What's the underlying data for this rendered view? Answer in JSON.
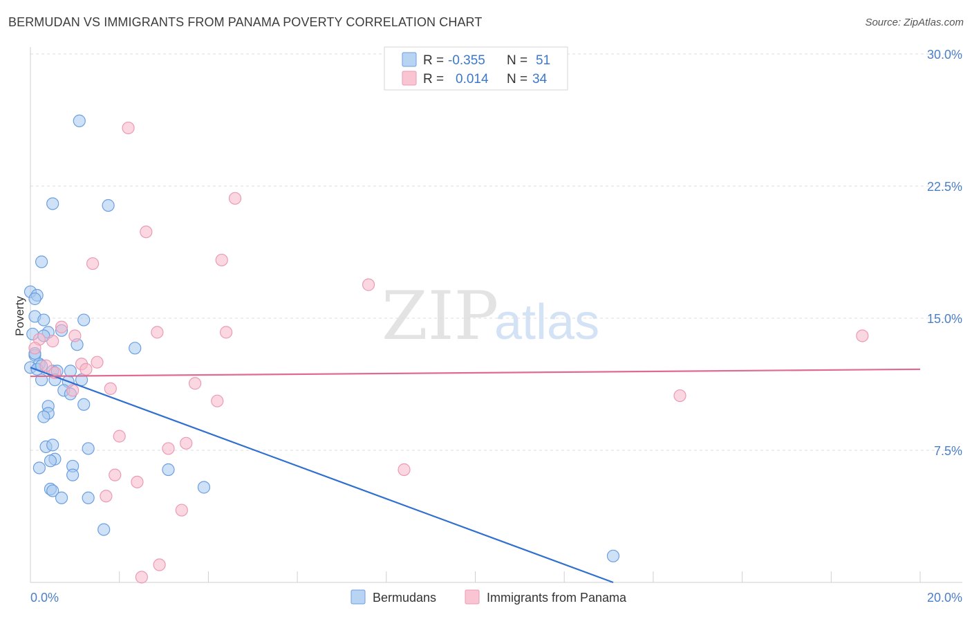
{
  "header": {
    "title": "BERMUDAN VS IMMIGRANTS FROM PANAMA POVERTY CORRELATION CHART",
    "source": "Source: ZipAtlas.com"
  },
  "watermark": {
    "zip": "ZIP",
    "atlas": "atlas"
  },
  "legend_stats": [
    {
      "r_label": "R =",
      "r_value": "-0.355",
      "n_label": "N =",
      "n_value": "51",
      "color": "#a8c8f0"
    },
    {
      "r_label": "R =",
      "r_value": "0.014",
      "n_label": "N =",
      "n_value": "34",
      "color": "#f7b6c8"
    }
  ],
  "chart_data": {
    "type": "scatter",
    "title": "BERMUDAN VS IMMIGRANTS FROM PANAMA POVERTY CORRELATION CHART",
    "xlabel": "",
    "ylabel": "Poverty",
    "xlim": [
      0,
      20
    ],
    "ylim": [
      0,
      30
    ],
    "x_ticks": [
      "0.0%",
      "20.0%"
    ],
    "y_ticks": [
      {
        "value": 7.5,
        "label": "7.5%"
      },
      {
        "value": 15,
        "label": "15.0%"
      },
      {
        "value": 22.5,
        "label": "22.5%"
      },
      {
        "value": 30,
        "label": "30.0%"
      }
    ],
    "grid": true,
    "legend_position": "bottom",
    "series": [
      {
        "name": "Bermudans",
        "color": "#6a9fe0",
        "fill": "#a8c8f0",
        "trend": {
          "x": [
            0,
            13.1
          ],
          "y": [
            12.2,
            0
          ]
        },
        "trend_color": "#2f6fd0",
        "points": [
          [
            1.1,
            26.2
          ],
          [
            0.5,
            21.5
          ],
          [
            1.75,
            21.4
          ],
          [
            0.25,
            18.2
          ],
          [
            0.0,
            16.5
          ],
          [
            0.15,
            16.3
          ],
          [
            0.1,
            16.1
          ],
          [
            0.1,
            15.1
          ],
          [
            0.3,
            14.9
          ],
          [
            1.2,
            14.9
          ],
          [
            0.05,
            14.1
          ],
          [
            0.4,
            14.2
          ],
          [
            0.3,
            14.0
          ],
          [
            0.7,
            14.3
          ],
          [
            1.05,
            13.5
          ],
          [
            2.35,
            13.3
          ],
          [
            0.1,
            12.9
          ],
          [
            0.2,
            12.4
          ],
          [
            0.0,
            12.2
          ],
          [
            0.5,
            12.0
          ],
          [
            0.6,
            12.0
          ],
          [
            0.9,
            12.0
          ],
          [
            0.25,
            11.5
          ],
          [
            0.55,
            11.5
          ],
          [
            0.85,
            11.4
          ],
          [
            1.15,
            11.5
          ],
          [
            0.75,
            10.9
          ],
          [
            0.9,
            10.7
          ],
          [
            1.2,
            10.1
          ],
          [
            0.4,
            10.0
          ],
          [
            0.4,
            9.6
          ],
          [
            0.3,
            9.4
          ],
          [
            0.35,
            7.7
          ],
          [
            0.5,
            7.8
          ],
          [
            1.3,
            7.6
          ],
          [
            0.55,
            7.0
          ],
          [
            0.45,
            6.9
          ],
          [
            0.2,
            6.5
          ],
          [
            0.95,
            6.6
          ],
          [
            3.1,
            6.4
          ],
          [
            0.95,
            6.1
          ],
          [
            0.45,
            5.3
          ],
          [
            0.5,
            5.2
          ],
          [
            3.9,
            5.4
          ],
          [
            0.7,
            4.8
          ],
          [
            1.3,
            4.8
          ],
          [
            1.65,
            3.0
          ],
          [
            13.1,
            1.5
          ],
          [
            0.15,
            12.1
          ],
          [
            0.25,
            12.3
          ],
          [
            0.1,
            13.0
          ]
        ]
      },
      {
        "name": "Immigrants from Panama",
        "color": "#ec9ab4",
        "fill": "#f7b6c8",
        "trend": {
          "x": [
            0,
            20
          ],
          "y": [
            11.7,
            12.1
          ]
        },
        "trend_color": "#e06a92",
        "points": [
          [
            2.2,
            25.8
          ],
          [
            4.6,
            21.8
          ],
          [
            2.6,
            19.9
          ],
          [
            1.4,
            18.1
          ],
          [
            4.3,
            18.3
          ],
          [
            7.6,
            16.9
          ],
          [
            0.7,
            14.5
          ],
          [
            1.0,
            14.0
          ],
          [
            2.85,
            14.2
          ],
          [
            4.4,
            14.2
          ],
          [
            18.7,
            14.0
          ],
          [
            0.2,
            13.8
          ],
          [
            0.5,
            13.7
          ],
          [
            0.1,
            13.3
          ],
          [
            1.5,
            12.5
          ],
          [
            1.15,
            12.4
          ],
          [
            0.35,
            12.3
          ],
          [
            1.25,
            12.1
          ],
          [
            0.55,
            11.9
          ],
          [
            3.7,
            11.3
          ],
          [
            0.95,
            10.9
          ],
          [
            1.8,
            11.0
          ],
          [
            4.2,
            10.3
          ],
          [
            14.6,
            10.6
          ],
          [
            2.0,
            8.3
          ],
          [
            3.5,
            7.9
          ],
          [
            3.1,
            7.6
          ],
          [
            8.4,
            6.4
          ],
          [
            1.9,
            6.1
          ],
          [
            2.4,
            5.7
          ],
          [
            1.7,
            4.9
          ],
          [
            3.4,
            4.1
          ],
          [
            2.9,
            1.0
          ],
          [
            2.5,
            0.3
          ]
        ]
      }
    ]
  }
}
